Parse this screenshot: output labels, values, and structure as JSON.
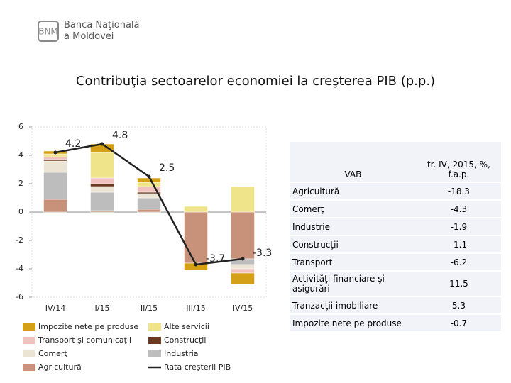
{
  "header": {
    "bank_name_1": "Banca Naţională",
    "bank_name_2": "a Moldovei"
  },
  "chart_data": {
    "type": "stacked_bar_line",
    "title": "Contribuţia sectoarelor economiei la creşterea PIB (p.p.)",
    "categories": [
      "IV/14",
      "I/15",
      "II/15",
      "III/15",
      "IV/15"
    ],
    "ylim": [
      -6,
      6
    ],
    "yticks": [
      -6,
      -4,
      -2,
      0,
      2,
      4,
      6
    ],
    "series": [
      {
        "name": "Impozite nete pe produse",
        "color": "#d4a017",
        "values": [
          0.2,
          0.6,
          0.3,
          -0.5,
          -0.8
        ]
      },
      {
        "name": "Alte servicii",
        "color": "#efe48a",
        "values": [
          0.2,
          1.8,
          0.3,
          0.4,
          1.8
        ]
      },
      {
        "name": "Transport şi comunicaţii",
        "color": "#efc2c0",
        "values": [
          0.2,
          0.4,
          0.4,
          0,
          -0.3
        ]
      },
      {
        "name": "Construcţii",
        "color": "#6b3a1f",
        "values": [
          0.1,
          0.2,
          0.1,
          0,
          0
        ]
      },
      {
        "name": "Comerţ",
        "color": "#ebe3d3",
        "values": [
          0.8,
          0.4,
          0.3,
          0,
          -0.3
        ]
      },
      {
        "name": "Industria",
        "color": "#bdbdbd",
        "values": [
          1.9,
          1.3,
          0.8,
          0,
          -0.4
        ]
      },
      {
        "name": "Agricultură",
        "color": "#c8917a",
        "values": [
          0.9,
          0.1,
          0.2,
          -3.6,
          -3.3
        ]
      }
    ],
    "line": {
      "name": "Rata creşterii PIB",
      "color": "#222222",
      "values": [
        4.2,
        4.8,
        2.5,
        -3.7,
        -3.3
      ]
    }
  },
  "table": {
    "header": [
      "VAB",
      "tr. IV, 2015, %, f.a.p."
    ],
    "rows": [
      [
        "Agricultură",
        -18.3
      ],
      [
        "Comerţ",
        -4.3
      ],
      [
        "Industrie",
        -1.9
      ],
      [
        "Construcţii",
        -1.1
      ],
      [
        "Transport",
        -6.2
      ],
      [
        "Activităţi financiare şi asigurări",
        11.5
      ],
      [
        "Tranzacţii imobiliare",
        5.3
      ],
      [
        "Impozite nete pe produse",
        -0.7
      ]
    ]
  }
}
